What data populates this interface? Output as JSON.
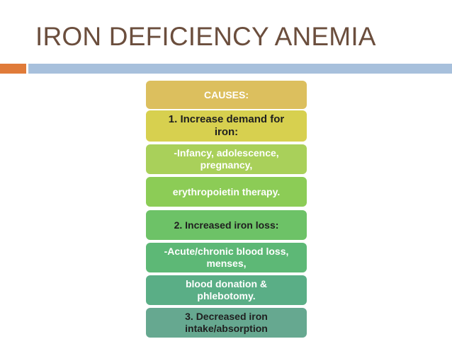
{
  "slide": {
    "title": "IRON DEFICIENCY ANEMIA",
    "colors": {
      "title": "#6b4e3d",
      "accent_bar": "#e07b39",
      "main_bar": "#a7c0dc"
    }
  },
  "diagram": {
    "boxes": [
      {
        "text": "CAUSES:",
        "bg": "#dcbf5e",
        "fg": "#ffffff"
      },
      {
        "text": "1. Increase demand for iron:",
        "bg": "#d7d04f",
        "fg": "#1f1f1f"
      },
      {
        "text": "-Infancy, adolescence, pregnancy,",
        "bg": "#a9d05a",
        "fg": "#ffffff"
      },
      {
        "text": "erythropoietin therapy.",
        "bg": "#8ccc56",
        "fg": "#ffffff"
      },
      {
        "text": "2. Increased iron loss:",
        "bg": "#6dc267",
        "fg": "#1f1f1f"
      },
      {
        "text": "-Acute/chronic blood loss, menses,",
        "bg": "#5db876",
        "fg": "#ffffff"
      },
      {
        "text": "blood donation & phlebotomy.",
        "bg": "#5aae86",
        "fg": "#ffffff"
      },
      {
        "text": "3. Decreased iron intake/absorption",
        "bg": "#66a890",
        "fg": "#1f1f1f"
      }
    ]
  }
}
